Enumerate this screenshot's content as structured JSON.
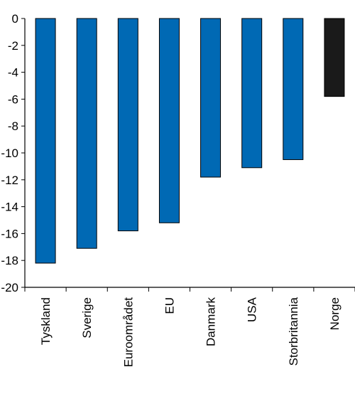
{
  "chart_data": {
    "type": "bar",
    "categories": [
      "Tyskland",
      "Sverige",
      "Euroområdet",
      "EU",
      "Danmark",
      "USA",
      "Storbritannia",
      "Norge"
    ],
    "values": [
      -18.2,
      -17.1,
      -15.8,
      -15.2,
      -11.8,
      -11.1,
      -10.5,
      -5.8
    ],
    "yticks": [
      0,
      -2,
      -4,
      -6,
      -8,
      -10,
      -12,
      -14,
      -16,
      -18,
      -20
    ],
    "ylim": [
      -20,
      0
    ],
    "colors": {
      "bar": "#0069b4",
      "highlight": "#1a1a1a",
      "highlight_category": "Norge",
      "axis": "#000000"
    },
    "grid": false,
    "legend": "none"
  }
}
